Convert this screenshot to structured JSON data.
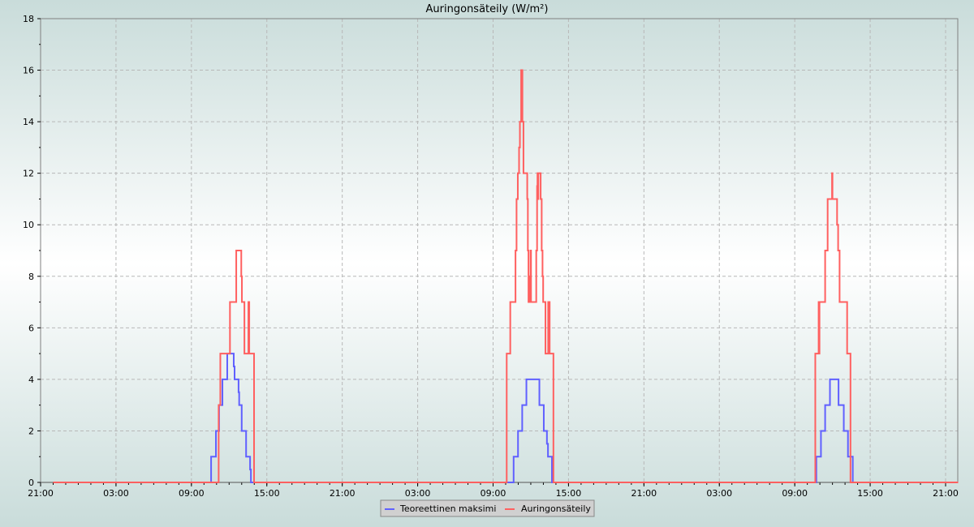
{
  "chart_data": {
    "type": "line",
    "step": true,
    "title": "Auringonsäteily (W/m²)",
    "xlabel": "",
    "ylabel": "",
    "ylim": [
      0,
      18
    ],
    "yticks": [
      0,
      2,
      4,
      6,
      8,
      10,
      12,
      14,
      16,
      18
    ],
    "xlim": [
      [
        0,
        "21:00"
      ],
      [
        3,
        "22:10"
      ]
    ],
    "xticks": [
      [
        0,
        "21:00"
      ],
      [
        1,
        "03:00"
      ],
      [
        1,
        "09:00"
      ],
      [
        1,
        "15:00"
      ],
      [
        1,
        "21:00"
      ],
      [
        2,
        "03:00"
      ],
      [
        2,
        "09:00"
      ],
      [
        2,
        "15:00"
      ],
      [
        2,
        "21:00"
      ],
      [
        3,
        "03:00"
      ],
      [
        3,
        "09:00"
      ],
      [
        3,
        "15:00"
      ],
      [
        3,
        "21:00"
      ]
    ],
    "grid": true,
    "legend_position": "bottom-center",
    "series": [
      {
        "name": "Teoreettinen maksimi",
        "color": "#6060ff",
        "points": [
          [
            0,
            "22:00",
            0
          ],
          [
            1,
            "10:34",
            1
          ],
          [
            1,
            "10:57",
            2
          ],
          [
            1,
            "11:12",
            3
          ],
          [
            1,
            "11:28",
            4
          ],
          [
            1,
            "11:51",
            5
          ],
          [
            1,
            "12:22",
            4.5
          ],
          [
            1,
            "12:26",
            4
          ],
          [
            1,
            "12:45",
            3.5
          ],
          [
            1,
            "12:48",
            3
          ],
          [
            1,
            "13:00",
            2
          ],
          [
            1,
            "13:21",
            1
          ],
          [
            1,
            "13:40",
            0.5
          ],
          [
            1,
            "13:44",
            0
          ],
          [
            2,
            "10:38",
            1
          ],
          [
            2,
            "10:59",
            2
          ],
          [
            2,
            "11:19",
            3
          ],
          [
            2,
            "11:39",
            4
          ],
          [
            2,
            "12:41",
            3
          ],
          [
            2,
            "13:02",
            2
          ],
          [
            2,
            "13:17",
            1.5
          ],
          [
            2,
            "13:22",
            1
          ],
          [
            2,
            "13:41",
            0
          ],
          [
            3,
            "10:43",
            1
          ],
          [
            3,
            "11:05",
            2
          ],
          [
            3,
            "11:25",
            3
          ],
          [
            3,
            "11:48",
            4
          ],
          [
            3,
            "12:29",
            3
          ],
          [
            3,
            "12:54",
            2
          ],
          [
            3,
            "13:14",
            1
          ],
          [
            3,
            "13:37",
            0
          ],
          [
            3,
            "22:00",
            0
          ]
        ]
      },
      {
        "name": "Auringonsäteily",
        "color": "#ff6060",
        "points": [
          [
            0,
            "22:00",
            0
          ],
          [
            1,
            "11:10",
            3
          ],
          [
            1,
            "11:18",
            5
          ],
          [
            1,
            "12:04",
            7
          ],
          [
            1,
            "12:34",
            9
          ],
          [
            1,
            "12:58",
            8
          ],
          [
            1,
            "13:01",
            7
          ],
          [
            1,
            "13:13",
            5
          ],
          [
            1,
            "13:32",
            7
          ],
          [
            1,
            "13:36",
            5
          ],
          [
            1,
            "13:59",
            0
          ],
          [
            2,
            "10:05",
            5
          ],
          [
            2,
            "10:22",
            7
          ],
          [
            2,
            "10:47",
            9
          ],
          [
            2,
            "10:52",
            11
          ],
          [
            2,
            "10:58",
            12
          ],
          [
            2,
            "11:04",
            13
          ],
          [
            2,
            "11:08",
            14
          ],
          [
            2,
            "11:14",
            16
          ],
          [
            2,
            "11:20",
            14
          ],
          [
            2,
            "11:25",
            12
          ],
          [
            2,
            "11:43",
            11
          ],
          [
            2,
            "11:46",
            9
          ],
          [
            2,
            "11:49",
            7
          ],
          [
            2,
            "11:55",
            8
          ],
          [
            2,
            "11:57",
            7
          ],
          [
            2,
            "11:59",
            9
          ],
          [
            2,
            "12:01",
            7
          ],
          [
            2,
            "12:26",
            9
          ],
          [
            2,
            "12:30",
            11.5
          ],
          [
            2,
            "12:32",
            12
          ],
          [
            2,
            "12:34",
            11
          ],
          [
            2,
            "12:36",
            12
          ],
          [
            2,
            "12:47",
            11
          ],
          [
            2,
            "12:52",
            9
          ],
          [
            2,
            "12:56",
            8
          ],
          [
            2,
            "12:59",
            7
          ],
          [
            2,
            "13:10",
            5
          ],
          [
            2,
            "13:23",
            7
          ],
          [
            2,
            "13:25",
            5
          ],
          [
            2,
            "13:28",
            7
          ],
          [
            2,
            "13:30",
            5
          ],
          [
            2,
            "13:48",
            0
          ],
          [
            3,
            "10:38",
            5
          ],
          [
            3,
            "10:54",
            7
          ],
          [
            3,
            "10:56",
            5
          ],
          [
            3,
            "10:58",
            7
          ],
          [
            3,
            "11:25",
            9
          ],
          [
            3,
            "11:37",
            11
          ],
          [
            3,
            "11:58",
            12
          ],
          [
            3,
            "12:00",
            11
          ],
          [
            3,
            "12:22",
            10
          ],
          [
            3,
            "12:27",
            9
          ],
          [
            3,
            "12:34",
            7
          ],
          [
            3,
            "13:10",
            5
          ],
          [
            3,
            "13:26",
            0
          ],
          [
            3,
            "22:00",
            0
          ]
        ]
      }
    ]
  }
}
